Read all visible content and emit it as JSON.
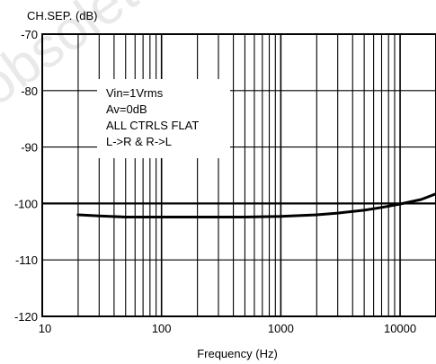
{
  "chart_data": {
    "type": "line",
    "ylabel": "CH.SEP. (dB)",
    "xlabel": "Frequency (Hz)",
    "x_scale": "log",
    "xlim": [
      10,
      20000
    ],
    "ylim": [
      -120,
      -70
    ],
    "x_ticks": [
      10,
      100,
      1000,
      10000
    ],
    "x_tick_labels": [
      "10",
      "100",
      "1000",
      "10000"
    ],
    "y_ticks": [
      -70,
      -80,
      -90,
      -100,
      -110,
      -120
    ],
    "y_tick_labels": [
      "-70",
      "-80",
      "-90",
      "-100",
      "-110",
      "-120"
    ],
    "grid": true,
    "reference_line": -100,
    "annotations": [
      "Vin=1Vrms",
      "Av=0dB",
      "ALL CTRLS FLAT",
      "L->R & R->L"
    ],
    "watermark": "obsolete",
    "series": [
      {
        "x": [
          20,
          30,
          50,
          100,
          200,
          500,
          1000,
          2000,
          3000,
          5000,
          7000,
          10000,
          15000,
          20000
        ],
        "y": [
          -102.0,
          -102.2,
          -102.4,
          -102.4,
          -102.4,
          -102.4,
          -102.3,
          -102.0,
          -101.7,
          -101.2,
          -100.7,
          -100.1,
          -99.3,
          -98.3
        ]
      }
    ]
  }
}
